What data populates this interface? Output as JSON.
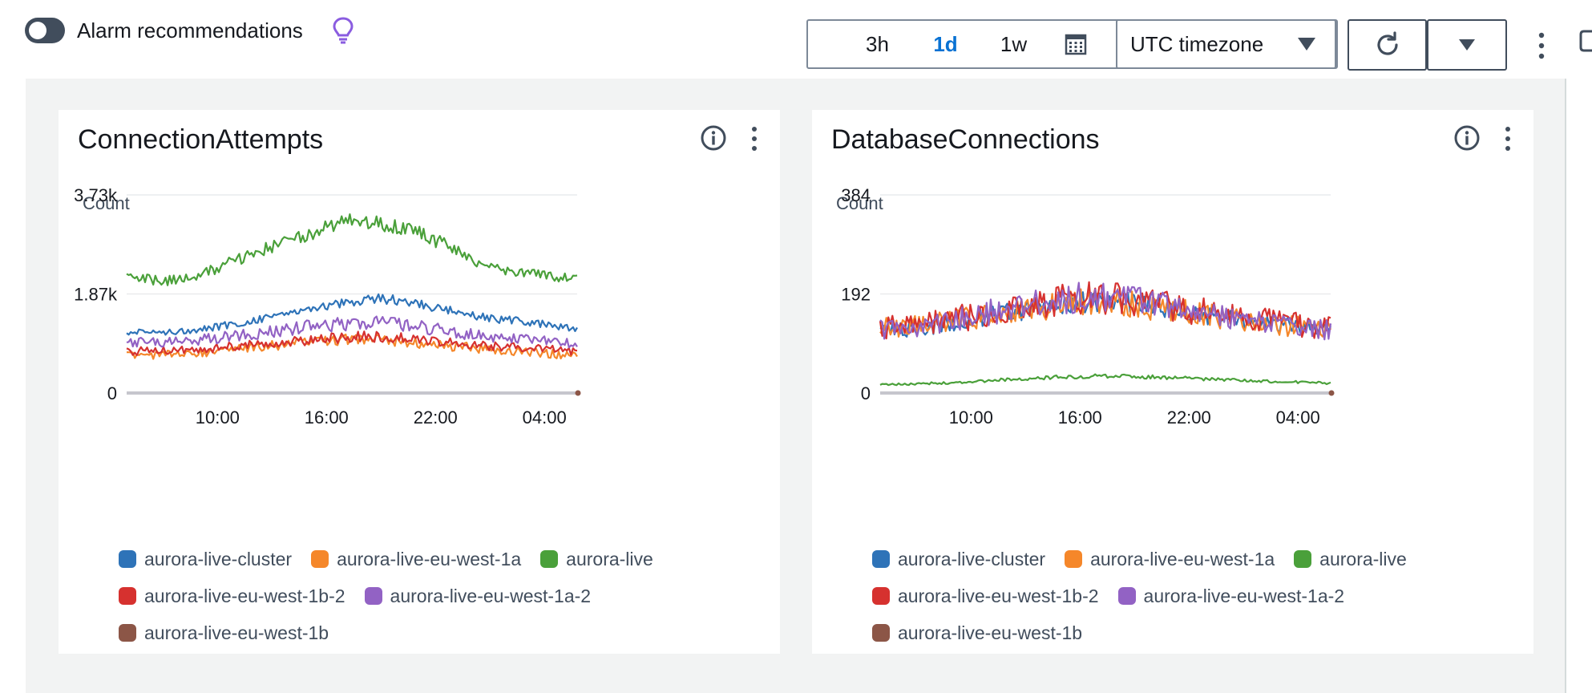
{
  "topbar": {
    "alarm_label": "Alarm recommendations",
    "toggle_on": false,
    "ranges": [
      "3h",
      "1d",
      "1w"
    ],
    "active_range": "1d",
    "timezone": "UTC timezone"
  },
  "colors": {
    "aurora-live-cluster": "#2e73b8",
    "aurora-live-eu-west-1a": "#f5872a",
    "aurora-live": "#4aa03a",
    "aurora-live-eu-west-1b-2": "#d6312f",
    "aurora-live-eu-west-1a-2": "#9262c4",
    "aurora-live-eu-west-1b": "#8c5647"
  },
  "panels": [
    {
      "title": "ConnectionAttempts",
      "unit": "Count"
    },
    {
      "title": "DatabaseConnections",
      "unit": "Count"
    }
  ],
  "chart_data": [
    {
      "type": "line",
      "title": "ConnectionAttempts",
      "ylabel": "Count",
      "y_ticks": [
        "0",
        "1.87k",
        "3.73k"
      ],
      "ylim": [
        0,
        3730
      ],
      "x_ticks": [
        "10:00",
        "16:00",
        "22:00",
        "04:00"
      ],
      "x_range_hours": [
        5.0,
        29.8
      ],
      "x_tick_hours": [
        10,
        16,
        22,
        28
      ],
      "series": [
        {
          "name": "aurora-live-cluster",
          "color": "#2e73b8",
          "x": [
            5,
            7,
            9,
            11,
            13,
            15,
            17,
            19,
            21,
            23,
            25,
            27,
            29.8
          ],
          "values": [
            1150,
            1150,
            1200,
            1300,
            1450,
            1600,
            1700,
            1780,
            1680,
            1550,
            1400,
            1350,
            1200
          ]
        },
        {
          "name": "aurora-live-eu-west-1a",
          "color": "#f5872a",
          "x": [
            5,
            7,
            9,
            11,
            13,
            15,
            17,
            19,
            21,
            23,
            25,
            27,
            29.8
          ],
          "values": [
            720,
            720,
            760,
            820,
            900,
            950,
            1000,
            1020,
            950,
            880,
            820,
            780,
            700
          ]
        },
        {
          "name": "aurora-live",
          "color": "#4aa03a",
          "x": [
            5,
            7,
            9,
            11,
            13,
            15,
            17,
            19,
            21,
            23,
            25,
            27,
            29.8
          ],
          "values": [
            2200,
            2100,
            2200,
            2500,
            2750,
            3000,
            3250,
            3200,
            3050,
            2700,
            2350,
            2250,
            2150
          ]
        },
        {
          "name": "aurora-live-eu-west-1b-2",
          "color": "#d6312f",
          "x": [
            5,
            7,
            9,
            11,
            13,
            15,
            17,
            19,
            21,
            23,
            25,
            27,
            29.8
          ],
          "values": [
            780,
            800,
            820,
            880,
            950,
            1000,
            1050,
            1060,
            1000,
            940,
            880,
            850,
            780
          ]
        },
        {
          "name": "aurora-live-eu-west-1a-2",
          "color": "#9262c4",
          "x": [
            5,
            7,
            9,
            11,
            13,
            15,
            17,
            19,
            21,
            23,
            25,
            27,
            29.8
          ],
          "values": [
            950,
            950,
            1000,
            1080,
            1150,
            1250,
            1300,
            1350,
            1250,
            1150,
            1050,
            1000,
            920
          ]
        },
        {
          "name": "aurora-live-eu-west-1b",
          "color": "#8c5647",
          "x": [
            29.8
          ],
          "values": [
            0
          ]
        }
      ]
    },
    {
      "type": "line",
      "title": "DatabaseConnections",
      "ylabel": "Count",
      "y_ticks": [
        "0",
        "192",
        "384"
      ],
      "ylim": [
        0,
        384
      ],
      "x_ticks": [
        "10:00",
        "16:00",
        "22:00",
        "04:00"
      ],
      "x_range_hours": [
        5.0,
        29.8
      ],
      "x_tick_hours": [
        10,
        16,
        22,
        28
      ],
      "series": [
        {
          "name": "aurora-live-cluster",
          "color": "#2e73b8",
          "x": [
            5,
            7,
            9,
            11,
            13,
            15,
            17,
            19,
            21,
            23,
            25,
            27,
            29.8
          ],
          "values": [
            120,
            125,
            135,
            150,
            160,
            172,
            178,
            175,
            165,
            150,
            140,
            132,
            120
          ]
        },
        {
          "name": "aurora-live-eu-west-1a",
          "color": "#f5872a",
          "x": [
            5,
            7,
            9,
            11,
            13,
            15,
            17,
            19,
            21,
            23,
            25,
            27,
            29.8
          ],
          "values": [
            125,
            130,
            140,
            152,
            162,
            172,
            176,
            172,
            162,
            150,
            140,
            132,
            122
          ]
        },
        {
          "name": "aurora-live",
          "color": "#4aa03a",
          "x": [
            5,
            7,
            9,
            11,
            13,
            15,
            17,
            19,
            21,
            23,
            25,
            27,
            29.8
          ],
          "values": [
            16,
            18,
            20,
            24,
            28,
            31,
            33,
            32,
            30,
            27,
            24,
            22,
            19
          ]
        },
        {
          "name": "aurora-live-eu-west-1b-2",
          "color": "#d6312f",
          "x": [
            5,
            7,
            9,
            11,
            13,
            15,
            17,
            19,
            21,
            23,
            25,
            27,
            29.8
          ],
          "values": [
            128,
            133,
            142,
            155,
            168,
            180,
            186,
            180,
            168,
            155,
            145,
            136,
            126
          ]
        },
        {
          "name": "aurora-live-eu-west-1a-2",
          "color": "#9262c4",
          "x": [
            5,
            7,
            9,
            11,
            13,
            15,
            17,
            19,
            21,
            23,
            25,
            27,
            29.8
          ],
          "values": [
            124,
            130,
            142,
            156,
            170,
            182,
            188,
            182,
            170,
            156,
            144,
            134,
            122
          ]
        },
        {
          "name": "aurora-live-eu-west-1b",
          "color": "#8c5647",
          "x": [
            29.8
          ],
          "values": [
            0
          ]
        }
      ]
    }
  ]
}
